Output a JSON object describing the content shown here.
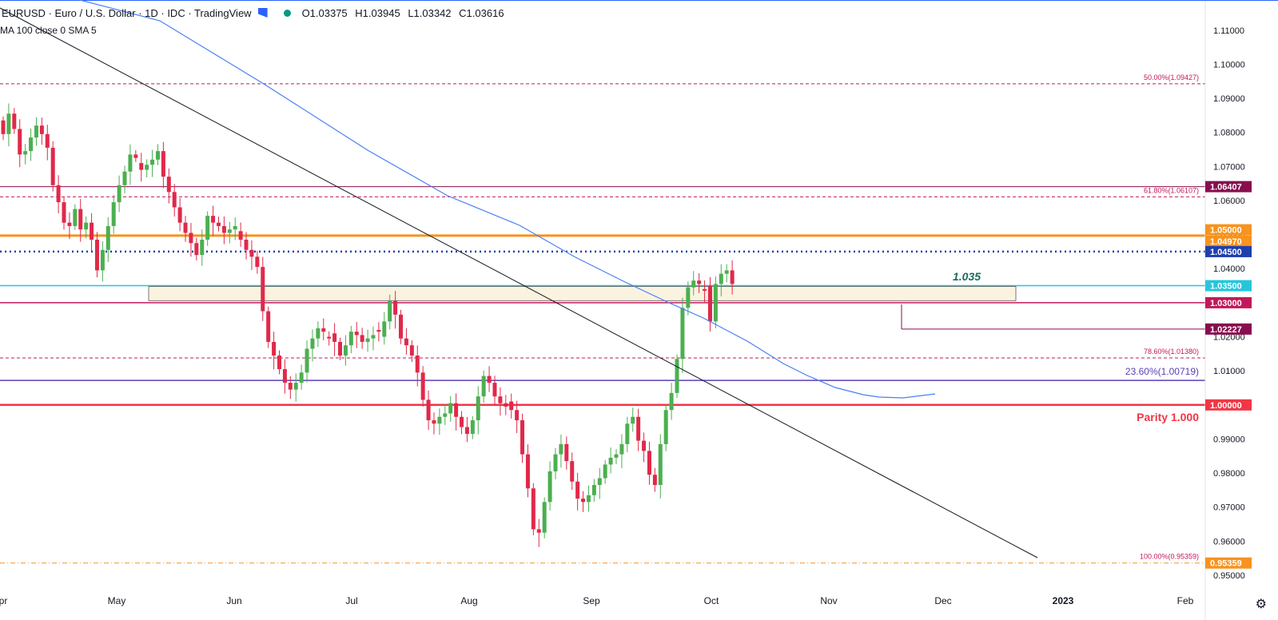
{
  "header": {
    "title": "EURUSD · Euro / U.S. Dollar · 1D · IDC · TradingView",
    "ohlc": {
      "open": "O1.03375",
      "high": "H1.03945",
      "low": "L1.03342",
      "close": "C1.03616"
    },
    "indicator": "MA 100 close 0 SMA 5"
  },
  "colors": {
    "up": "#4caf50",
    "down": "#e0294a",
    "ma": "#4a7ef5",
    "trendline": "#131722",
    "orange": "#f7931e",
    "navy": "#1e3fae",
    "teal": "#26c6da",
    "crimson": "#c2185b",
    "maroon": "#880e4f",
    "purple": "#5b3fb8",
    "red": "#f23645"
  },
  "chart_data": {
    "type": "candlestick",
    "symbol": "EURUSD",
    "interval": "1D",
    "ylim": [
      0.9468,
      1.1168
    ],
    "x_labels": [
      "Apr",
      "May",
      "Jun",
      "Jul",
      "Aug",
      "Sep",
      "Oct",
      "Nov",
      "Dec",
      "2023",
      "Feb"
    ],
    "y_ticks": [
      "1.11000",
      "1.10000",
      "1.09000",
      "1.08000",
      "1.07000",
      "1.06000",
      "1.05000",
      "1.04000",
      "1.03000",
      "1.02000",
      "1.01000",
      "1.00000",
      "0.99000",
      "0.98000",
      "0.97000",
      "0.96000",
      "0.95000"
    ],
    "price_badges": [
      {
        "label": "1.06407",
        "value": 1.06407,
        "color": "#880e4f"
      },
      {
        "label": "1.05000",
        "value": 1.05,
        "color": "#f7931e"
      },
      {
        "label": "1.04970",
        "value": 1.0497,
        "color": "#f7931e"
      },
      {
        "label": "1.04500",
        "value": 1.045,
        "color": "#1e3fae"
      },
      {
        "label": "1.03500",
        "value": 1.035,
        "color": "#26c6da"
      },
      {
        "label": "1.03000",
        "value": 1.03,
        "color": "#c2185b"
      },
      {
        "label": "1.02227",
        "value": 1.02227,
        "color": "#880e4f"
      },
      {
        "label": "1.00000",
        "value": 1.0,
        "color": "#f23645"
      },
      {
        "label": "0.95359",
        "value": 0.95359,
        "color": "#f7931e"
      }
    ],
    "fib_levels": [
      {
        "label": "50.00%(1.09427)",
        "value": 1.09427
      },
      {
        "label": "61.80%(1.06107)",
        "value": 1.06107
      },
      {
        "label": "78.60%(1.01380)",
        "value": 1.0138
      },
      {
        "label": "100.00%(0.95359)",
        "value": 0.95359
      }
    ],
    "annotations": {
      "fib_2360": "23.60%(1.00719)",
      "fib_2360_value": 1.00719,
      "parity": "Parity 1.000",
      "zone_label": "1.035",
      "zone": [
        1.0306,
        1.035
      ]
    },
    "ohlc_mid": [
      1.0795,
      1.0855,
      1.081,
      1.0735,
      1.0745,
      1.0785,
      1.082,
      1.0795,
      1.0755,
      1.0645,
      1.0595,
      1.0535,
      1.0525,
      1.0575,
      1.0515,
      1.0535,
      1.0485,
      1.0395,
      1.0455,
      1.0525,
      1.0595,
      1.0645,
      1.0685,
      1.0735,
      1.0725,
      1.069,
      1.0705,
      1.072,
      1.0745,
      1.067,
      1.0625,
      1.058,
      1.0535,
      1.0505,
      1.0475,
      1.044,
      1.0485,
      1.0555,
      1.0535,
      1.0525,
      1.0505,
      1.0515,
      1.0525,
      1.0485,
      1.0455,
      1.0435,
      1.0405,
      1.0275,
      1.0185,
      1.0145,
      1.0105,
      1.0065,
      1.0045,
      1.0065,
      1.0095,
      1.0165,
      1.0195,
      1.0225,
      1.0215,
      1.0195,
      1.0185,
      1.0145,
      1.0175,
      1.0215,
      1.0205,
      1.0185,
      1.0195,
      1.0205,
      1.0215,
      1.0245,
      1.0305,
      1.0265,
      1.0195,
      1.0175,
      1.0145,
      1.0095,
      1.0015,
      0.9955,
      0.9945,
      0.9965,
      0.9975,
      1.0005,
      0.9965,
      0.9935,
      0.9915,
      0.9955,
      1.0025,
      1.0085,
      1.0065,
      1.0025,
      1.0005,
      0.9995,
      0.9985,
      0.9955,
      0.9855,
      0.9755,
      0.9635,
      0.9625,
      0.9715,
      0.9805,
      0.9855,
      0.9885,
      0.9835,
      0.9775,
      0.9725,
      0.9715,
      0.9735,
      0.9765,
      0.9785,
      0.9825,
      0.9845,
      0.9855,
      0.9885,
      0.9945,
      0.9965,
      0.9895,
      0.9865,
      0.9795,
      0.9765,
      0.9885,
      0.9985,
      1.0035,
      1.0135,
      1.0285,
      1.0345,
      1.0365,
      1.0355,
      1.0335,
      1.0245,
      1.0355,
      1.0385,
      1.0395,
      1.0355
    ]
  }
}
